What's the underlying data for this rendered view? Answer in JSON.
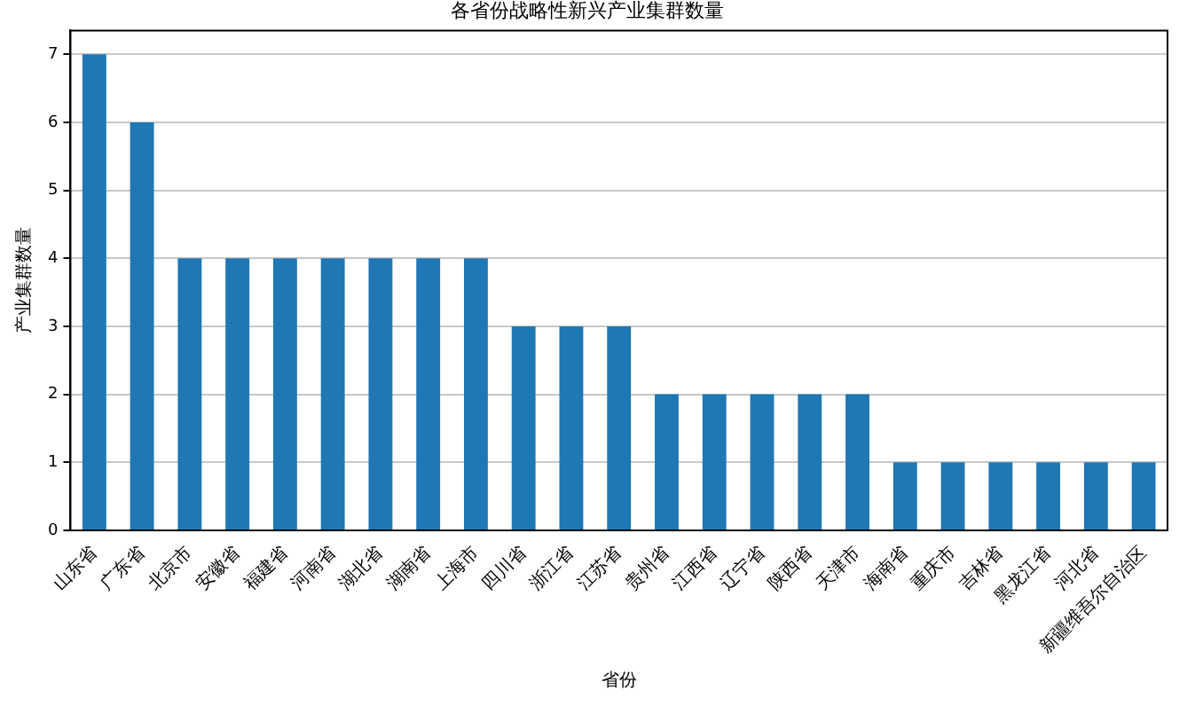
{
  "chart_data": {
    "type": "bar",
    "title": "各省份战略性新兴产业集群数量",
    "xlabel": "省份",
    "ylabel": "产业集群数量",
    "categories": [
      "山东省",
      "广东省",
      "北京市",
      "安徽省",
      "福建省",
      "河南省",
      "湖北省",
      "湖南省",
      "上海市",
      "四川省",
      "浙江省",
      "江苏省",
      "贵州省",
      "江西省",
      "辽宁省",
      "陕西省",
      "天津市",
      "海南省",
      "重庆市",
      "吉林省",
      "黑龙江省",
      "河北省",
      "新疆维吾尔自治区"
    ],
    "values": [
      7,
      6,
      4,
      4,
      4,
      4,
      4,
      4,
      4,
      3,
      3,
      3,
      2,
      2,
      2,
      2,
      2,
      1,
      1,
      1,
      1,
      1,
      1
    ],
    "color": "#1f77b4",
    "ylim": [
      0,
      7.35
    ],
    "yticks": [
      0,
      1,
      2,
      3,
      4,
      5,
      6,
      7
    ],
    "grid": "y"
  }
}
